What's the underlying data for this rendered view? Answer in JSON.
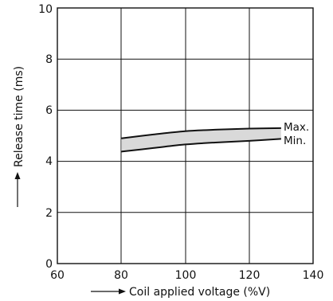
{
  "chart_data": {
    "type": "area",
    "xlabel": "Coil applied voltage (%V)",
    "ylabel": "Release time (ms)",
    "xlim": [
      60,
      140
    ],
    "ylim": [
      0,
      10
    ],
    "x_ticks": [
      "60",
      "80",
      "100",
      "120",
      "140"
    ],
    "y_ticks": [
      "0",
      "2",
      "4",
      "6",
      "8",
      "10"
    ],
    "grid": true,
    "band_fill": "#d9d9d9",
    "line_color": "#111111",
    "series": [
      {
        "name": "Max.",
        "x": [
          80,
          90,
          100,
          110,
          120,
          130
        ],
        "y": [
          4.9,
          5.05,
          5.18,
          5.24,
          5.28,
          5.3
        ]
      },
      {
        "name": "Min.",
        "x": [
          80,
          90,
          100,
          110,
          120,
          130
        ],
        "y": [
          4.38,
          4.52,
          4.66,
          4.74,
          4.8,
          4.88
        ]
      }
    ]
  }
}
